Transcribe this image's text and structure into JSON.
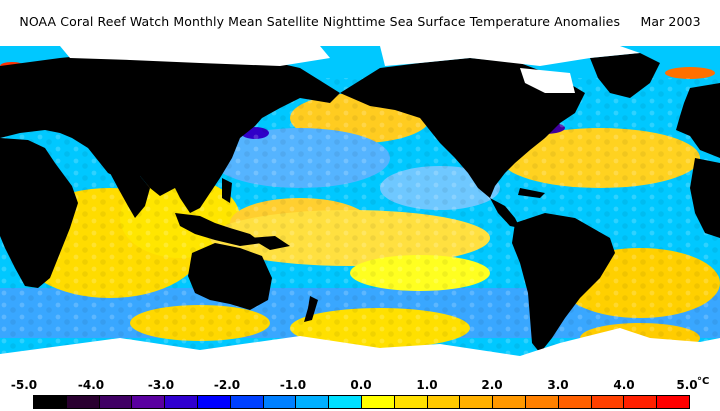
{
  "title": "NOAA Coral Reef Watch Monthly Mean Satellite Nighttime Sea Surface Temperature Anomalies     Mar 2003",
  "colorbar": {
    "tick_labels": [
      "-5.0",
      "-4.0",
      "-3.0",
      "-2.0",
      "-1.0",
      "0.0",
      "1.0",
      "2.0",
      "3.0",
      "4.0",
      "5.0"
    ],
    "unit": "°C",
    "colors": [
      "#000000",
      "#2a0030",
      "#400064",
      "#5a00a0",
      "#3000d0",
      "#0000ff",
      "#0040ff",
      "#0080ff",
      "#00b0ff",
      "#00e0ff",
      "#ffff00",
      "#ffe000",
      "#ffc800",
      "#ffb000",
      "#ff9800",
      "#ff8000",
      "#ff6000",
      "#ff4000",
      "#ff2000",
      "#ff0000"
    ]
  },
  "legend": {
    "land_color": "#000000",
    "ice_color": "#ffffff",
    "ocean_dominant_colors": [
      "#ffff00",
      "#ffc800",
      "#00b0ff",
      "#0080ff"
    ]
  }
}
